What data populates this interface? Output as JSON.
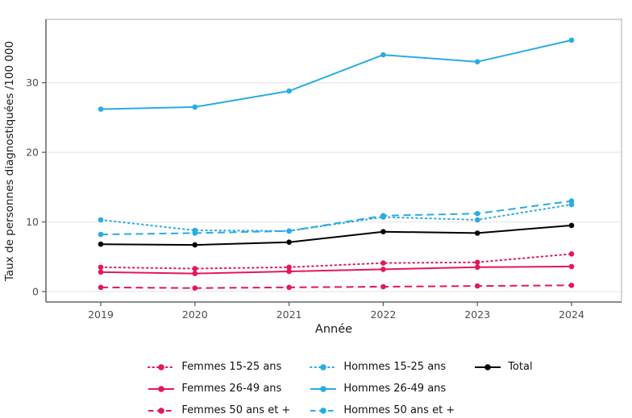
{
  "chart_data": {
    "type": "line",
    "title": "",
    "xlabel": "Année",
    "ylabel": "Taux de personnes diagnostiquées /100 000",
    "x": [
      "2019",
      "2020",
      "2021",
      "2022",
      "2023",
      "2024"
    ],
    "yticks": [
      0,
      10,
      20,
      30
    ],
    "ylim": [
      -1.5,
      39.1
    ],
    "grid": "horizontal-only",
    "legend_position": "bottom",
    "panel_border_color": "#a8a8a8",
    "axis_line_color": "#7a7a7a",
    "gridline_color": "#ebebeb",
    "colors": {
      "femmes": "#e3175b",
      "hommes": "#2aabe2",
      "total": "#000000"
    },
    "series": [
      {
        "name": "Femmes 15-25 ans",
        "color": "#e3175b",
        "style": "dotted",
        "values": [
          3.5,
          3.3,
          3.5,
          4.1,
          4.2,
          5.4
        ]
      },
      {
        "name": "Femmes 26-49 ans",
        "color": "#e3175b",
        "style": "solid",
        "values": [
          2.8,
          2.6,
          2.9,
          3.2,
          3.5,
          3.6
        ]
      },
      {
        "name": "Femmes 50 ans et +",
        "color": "#e3175b",
        "style": "dashed",
        "values": [
          0.6,
          0.5,
          0.6,
          0.7,
          0.8,
          0.9
        ]
      },
      {
        "name": "Hommes 15-25 ans",
        "color": "#2aabe2",
        "style": "dotted",
        "values": [
          10.3,
          8.8,
          8.7,
          10.7,
          10.3,
          12.5
        ]
      },
      {
        "name": "Hommes 26-49 ans",
        "color": "#2aabe2",
        "style": "solid",
        "values": [
          26.2,
          26.5,
          28.8,
          34.0,
          33.0,
          36.1
        ]
      },
      {
        "name": "Hommes 50 ans et +",
        "color": "#2aabe2",
        "style": "dashed",
        "values": [
          8.2,
          8.4,
          8.7,
          10.9,
          11.2,
          13.0
        ]
      },
      {
        "name": "Total",
        "color": "#000000",
        "style": "solid",
        "values": [
          6.8,
          6.7,
          7.1,
          8.6,
          8.4,
          9.5
        ]
      }
    ],
    "legend_columns": [
      [
        "Femmes 15-25 ans",
        "Femmes 26-49 ans",
        "Femmes 50 ans et +"
      ],
      [
        "Hommes 15-25 ans",
        "Hommes 26-49 ans",
        "Hommes 50 ans et +"
      ],
      [
        "Total"
      ]
    ]
  }
}
